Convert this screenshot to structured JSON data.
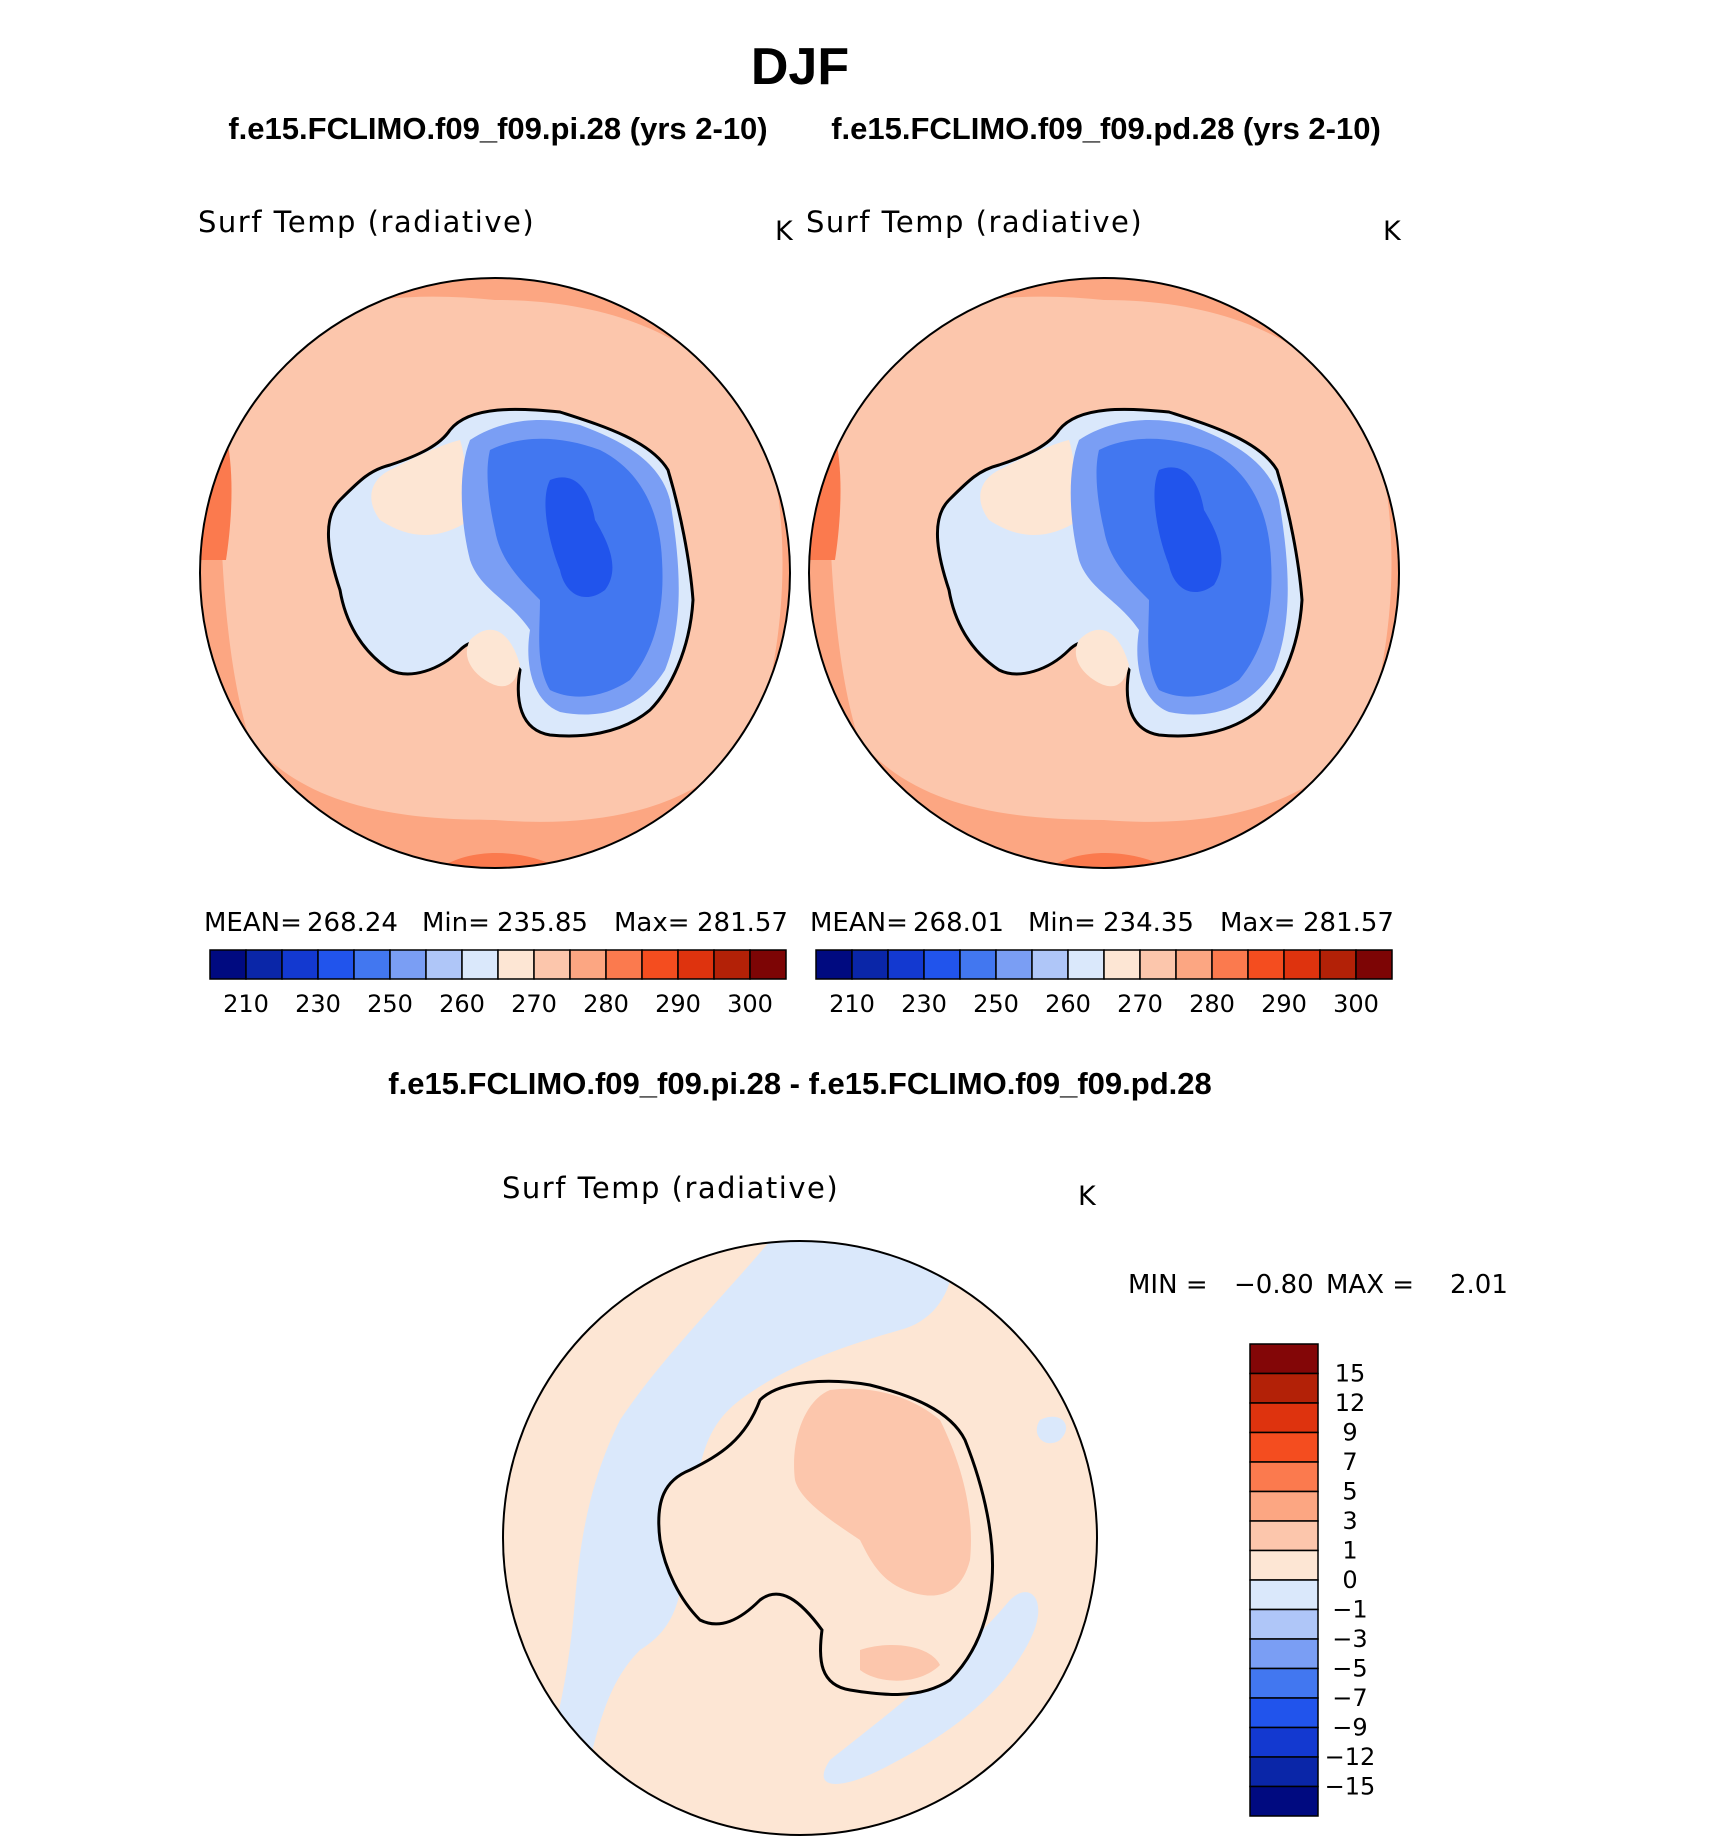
{
  "season": "DJF",
  "case_titles": {
    "left": "f.e15.FCLIMO.f09_f09.pi.28 (yrs 2-10)",
    "right": "f.e15.FCLIMO.f09_f09.pd.28 (yrs 2-10)",
    "diff": "f.e15.FCLIMO.f09_f09.pi.28 - f.e15.FCLIMO.f09_f09.pd.28"
  },
  "panels": {
    "left": {
      "variable": "Surf Temp (radiative)",
      "units": "K",
      "mean_label": "MEAN=",
      "mean": "268.24",
      "min_label": "Min=",
      "min": "235.85",
      "max_label": "Max=",
      "max": "281.57"
    },
    "right": {
      "variable": "Surf Temp (radiative)",
      "units": "K",
      "mean_label": "MEAN=",
      "mean": "268.01",
      "min_label": "Min=",
      "min": "234.35",
      "max_label": "Max=",
      "max": "281.57"
    },
    "diff": {
      "variable": "Surf Temp (radiative)",
      "units": "K",
      "min_label": "MIN =",
      "min": "−0.80",
      "max_label": "MAX =",
      "max": "2.01"
    }
  },
  "abs_colorbar": {
    "colors": [
      "#000a80",
      "#0a26a8",
      "#1339d0",
      "#2154ec",
      "#4277f0",
      "#7a9ef4",
      "#afc6f8",
      "#dae8fb",
      "#fde6d4",
      "#fcc6ac",
      "#fca682",
      "#fb7a4e",
      "#f44d1f",
      "#de330e",
      "#b32107",
      "#7d0505"
    ],
    "labels": [
      "210",
      "230",
      "250",
      "260",
      "270",
      "280",
      "290",
      "300"
    ]
  },
  "diff_colorbar": {
    "colors_top_to_bottom": [
      "#830607",
      "#b32107",
      "#de330e",
      "#f44d1f",
      "#fb7a4e",
      "#fca682",
      "#fcc6ac",
      "#fde6d4",
      "#dae8fb",
      "#afc6f8",
      "#7a9ef4",
      "#4277f0",
      "#2154ec",
      "#1339d0",
      "#0a26a8",
      "#000a80"
    ],
    "labels_top_to_bottom": [
      "15",
      "12",
      "9",
      "7",
      "5",
      "3",
      "1",
      "0",
      "−1",
      "−3",
      "−5",
      "−7",
      "−9",
      "−12",
      "−15"
    ]
  },
  "colors": {
    "ocean_cold_mid": "#fcc6ac",
    "ocean_warm": "#fca682",
    "ocean_hot": "#fb7a4e",
    "diff_pos": "#fde6d4",
    "diff_neg": "#dae8fb",
    "diff_pos2": "#fcc6ac"
  }
}
